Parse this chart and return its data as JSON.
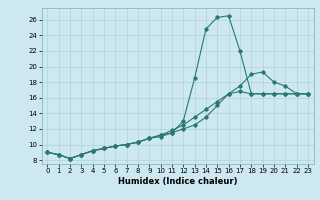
{
  "xlabel": "Humidex (Indice chaleur)",
  "ylabel": "",
  "background_color": "#cde8f0",
  "grid_color": "#a8cdd8",
  "line_color": "#2a7a6a",
  "xlim": [
    -0.5,
    23.5
  ],
  "ylim": [
    7.5,
    27.5
  ],
  "xtick_labels": [
    "0",
    "1",
    "2",
    "3",
    "4",
    "5",
    "6",
    "7",
    "8",
    "9",
    "10",
    "11",
    "12",
    "13",
    "14",
    "15",
    "16",
    "17",
    "18",
    "19",
    "20",
    "21",
    "22",
    "23"
  ],
  "xticks": [
    0,
    1,
    2,
    3,
    4,
    5,
    6,
    7,
    8,
    9,
    10,
    11,
    12,
    13,
    14,
    15,
    16,
    17,
    18,
    19,
    20,
    21,
    22,
    23
  ],
  "yticks": [
    8,
    10,
    12,
    14,
    16,
    18,
    20,
    22,
    24,
    26
  ],
  "line1_x": [
    0,
    1,
    2,
    3,
    4,
    5,
    6,
    7,
    8,
    9,
    10,
    11,
    12,
    13,
    14,
    15,
    16,
    17,
    18,
    19,
    20,
    21,
    22,
    23
  ],
  "line1_y": [
    9.0,
    8.7,
    8.2,
    8.7,
    9.2,
    9.5,
    9.8,
    10.0,
    10.3,
    10.8,
    11.0,
    11.5,
    13.0,
    18.5,
    24.8,
    26.3,
    26.5,
    22.0,
    16.5,
    16.5,
    16.5,
    16.5,
    16.5,
    16.5
  ],
  "line2_x": [
    0,
    1,
    2,
    3,
    4,
    5,
    6,
    7,
    8,
    9,
    10,
    11,
    12,
    13,
    14,
    15,
    16,
    17,
    18,
    19,
    20,
    21,
    22,
    23
  ],
  "line2_y": [
    9.0,
    8.7,
    8.2,
    8.7,
    9.2,
    9.5,
    9.8,
    10.0,
    10.3,
    10.8,
    11.2,
    11.5,
    12.0,
    12.5,
    13.5,
    15.0,
    16.5,
    17.5,
    19.0,
    19.3,
    18.0,
    17.5,
    16.5,
    16.5
  ],
  "line3_x": [
    0,
    1,
    2,
    3,
    4,
    5,
    6,
    7,
    8,
    9,
    10,
    11,
    12,
    13,
    14,
    15,
    16,
    17,
    18,
    19,
    20,
    21,
    22,
    23
  ],
  "line3_y": [
    9.0,
    8.7,
    8.2,
    8.7,
    9.2,
    9.5,
    9.8,
    10.0,
    10.3,
    10.8,
    11.2,
    11.8,
    12.5,
    13.5,
    14.5,
    15.5,
    16.5,
    16.8,
    16.5,
    16.5,
    16.5,
    16.5,
    16.5,
    16.5
  ],
  "xlabel_fontsize": 6,
  "tick_fontsize": 5,
  "linewidth": 0.8,
  "markersize": 1.8
}
